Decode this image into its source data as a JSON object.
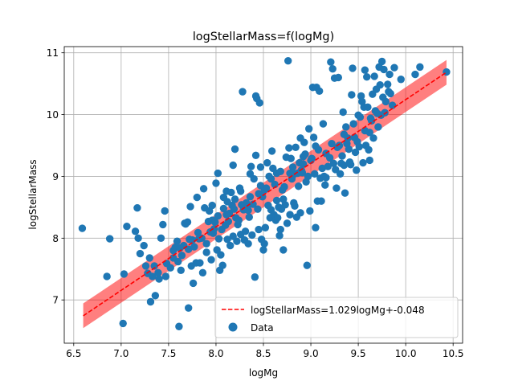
{
  "chart_data": {
    "type": "scatter",
    "title": "logStellarMass=f(logMg)",
    "xlabel": "logMg",
    "ylabel": "logStellarMass",
    "xlim": [
      6.4,
      10.6
    ],
    "ylim": [
      6.3,
      11.1
    ],
    "xticks": [
      6.5,
      7.0,
      7.5,
      8.0,
      8.5,
      9.0,
      9.5,
      10.0,
      10.5
    ],
    "xtick_labels": [
      "6.5",
      "7.0",
      "7.5",
      "8.0",
      "8.5",
      "9.0",
      "9.5",
      "10.0",
      "10.5"
    ],
    "yticks": [
      7,
      8,
      9,
      10,
      11
    ],
    "ytick_labels": [
      "7",
      "8",
      "9",
      "10",
      "11"
    ],
    "grid": true,
    "legend_position": "lower right",
    "fit": {
      "label": "logStellarMass=1.029logMg+-0.048",
      "slope": 1.029,
      "intercept": -0.048,
      "x_range": [
        6.6,
        10.43
      ],
      "band_halfwidth": 0.2,
      "line_color": "#ff0000",
      "band_color": "#ff0000"
    },
    "series": [
      {
        "name": "Data",
        "color": "#1f77b4",
        "points": [
          [
            6.59,
            8.16
          ],
          [
            6.85,
            7.38
          ],
          [
            6.88,
            7.99
          ],
          [
            7.02,
            6.62
          ],
          [
            7.03,
            7.42
          ],
          [
            7.06,
            8.19
          ],
          [
            7.15,
            8.11
          ],
          [
            7.17,
            8.49
          ],
          [
            7.18,
            8.0
          ],
          [
            7.2,
            7.75
          ],
          [
            7.24,
            7.88
          ],
          [
            7.26,
            7.55
          ],
          [
            7.28,
            7.43
          ],
          [
            7.3,
            7.68
          ],
          [
            7.31,
            6.97
          ],
          [
            7.33,
            7.38
          ],
          [
            7.35,
            7.55
          ],
          [
            7.36,
            7.07
          ],
          [
            7.39,
            7.44
          ],
          [
            7.4,
            7.34
          ],
          [
            7.42,
            8.0
          ],
          [
            7.44,
            8.22
          ],
          [
            7.46,
            8.44
          ],
          [
            7.47,
            7.38
          ],
          [
            7.48,
            7.59
          ],
          [
            7.55,
            7.68
          ],
          [
            7.55,
            7.8
          ],
          [
            7.57,
            7.85
          ],
          [
            7.59,
            7.95
          ],
          [
            7.6,
            7.62
          ],
          [
            7.61,
            6.57
          ],
          [
            7.63,
            7.48
          ],
          [
            7.64,
            7.72
          ],
          [
            7.66,
            7.88
          ],
          [
            7.67,
            8.24
          ],
          [
            7.68,
            8.23
          ],
          [
            7.7,
            8.26
          ],
          [
            7.71,
            7.82
          ],
          [
            7.71,
            6.87
          ],
          [
            7.73,
            8.51
          ],
          [
            7.74,
            7.55
          ],
          [
            7.75,
            7.97
          ],
          [
            7.76,
            7.27
          ],
          [
            7.77,
            7.86
          ],
          [
            7.79,
            7.6
          ],
          [
            7.8,
            8.66
          ],
          [
            7.81,
            8.09
          ],
          [
            7.82,
            7.99
          ],
          [
            7.83,
            7.6
          ],
          [
            7.85,
            8.0
          ],
          [
            7.86,
            7.44
          ],
          [
            7.87,
            8.8
          ],
          [
            7.88,
            8.49
          ],
          [
            7.9,
            7.91
          ],
          [
            7.9,
            7.77
          ],
          [
            7.92,
            8.27
          ],
          [
            7.93,
            8.44
          ],
          [
            7.94,
            8.1
          ],
          [
            7.95,
            7.65
          ],
          [
            7.96,
            8.29
          ],
          [
            7.97,
            8.08
          ],
          [
            7.98,
            8.15
          ],
          [
            7.99,
            8.26
          ],
          [
            8.0,
            8.89
          ],
          [
            8.01,
            7.81
          ],
          [
            8.02,
            9.05
          ],
          [
            8.03,
            7.99
          ],
          [
            8.04,
            7.48
          ],
          [
            8.05,
            7.73
          ],
          [
            8.06,
            8.14
          ],
          [
            8.07,
            7.56
          ],
          [
            8.08,
            8.48
          ],
          [
            8.08,
            8.66
          ],
          [
            8.1,
            8.21
          ],
          [
            8.11,
            8.76
          ],
          [
            8.12,
            7.98
          ],
          [
            8.12,
            8.59
          ],
          [
            8.13,
            8.27
          ],
          [
            8.14,
            8.4
          ],
          [
            8.15,
            7.88
          ],
          [
            8.16,
            8.74
          ],
          [
            8.17,
            8.53
          ],
          [
            8.18,
            9.18
          ],
          [
            8.19,
            8.47
          ],
          [
            8.2,
            8.63
          ],
          [
            8.2,
            9.44
          ],
          [
            8.21,
            8.33
          ],
          [
            8.22,
            7.95
          ],
          [
            8.23,
            8.22
          ],
          [
            8.24,
            8.29
          ],
          [
            8.25,
            8.81
          ],
          [
            8.26,
            8.06
          ],
          [
            8.27,
            8.54
          ],
          [
            8.28,
            10.37
          ],
          [
            8.29,
            8.46
          ],
          [
            8.3,
            7.97
          ],
          [
            8.31,
            8.11
          ],
          [
            8.32,
            8.57
          ],
          [
            8.33,
            8.5
          ],
          [
            8.34,
            8.45
          ],
          [
            8.35,
            8.34
          ],
          [
            8.36,
            8.67
          ],
          [
            8.37,
            9.16
          ],
          [
            8.38,
            8.05
          ],
          [
            8.39,
            8.55
          ],
          [
            8.4,
            8.96
          ],
          [
            8.41,
            7.37
          ],
          [
            8.42,
            9.34
          ],
          [
            8.42,
            10.3
          ],
          [
            8.43,
            10.26
          ],
          [
            8.44,
            8.47
          ],
          [
            8.45,
            8.72
          ],
          [
            8.46,
            10.19
          ],
          [
            8.47,
            9.15
          ],
          [
            8.48,
            7.98
          ],
          [
            8.49,
            8.67
          ],
          [
            8.5,
            7.81
          ],
          [
            8.51,
            7.91
          ],
          [
            8.51,
            8.78
          ],
          [
            8.52,
            8.17
          ],
          [
            8.53,
            8.81
          ],
          [
            8.54,
            9.22
          ],
          [
            8.55,
            8.53
          ],
          [
            8.56,
            9.0
          ],
          [
            8.57,
            8.33
          ],
          [
            8.58,
            8.46
          ],
          [
            8.59,
            9.41
          ],
          [
            8.6,
            9.13
          ],
          [
            8.61,
            8.38
          ],
          [
            8.62,
            8.87
          ],
          [
            8.63,
            8.29
          ],
          [
            8.64,
            9.05
          ],
          [
            8.65,
            8.33
          ],
          [
            8.66,
            8.5
          ],
          [
            8.67,
            8.04
          ],
          [
            8.68,
            9.08
          ],
          [
            8.68,
            8.14
          ],
          [
            8.69,
            8.47
          ],
          [
            8.7,
            8.78
          ],
          [
            8.71,
            7.81
          ],
          [
            8.72,
            8.83
          ],
          [
            8.73,
            8.54
          ],
          [
            8.74,
            9.31
          ],
          [
            8.75,
            8.24
          ],
          [
            8.76,
            10.87
          ],
          [
            8.77,
            9.46
          ],
          [
            8.78,
            8.38
          ],
          [
            8.79,
            9.29
          ],
          [
            8.8,
            8.96
          ],
          [
            8.81,
            9.15
          ],
          [
            8.82,
            8.57
          ],
          [
            8.83,
            9.04
          ],
          [
            8.84,
            9.47
          ],
          [
            8.85,
            8.34
          ],
          [
            8.86,
            9.05
          ],
          [
            8.87,
            8.84
          ],
          [
            8.88,
            9.22
          ],
          [
            8.89,
            8.41
          ],
          [
            8.9,
            9.1
          ],
          [
            8.91,
            9.06
          ],
          [
            8.92,
            9.32
          ],
          [
            8.93,
            9.55
          ],
          [
            8.94,
            9.36
          ],
          [
            8.95,
            8.91
          ],
          [
            8.96,
            7.56
          ],
          [
            8.97,
            9.0
          ],
          [
            8.98,
            9.77
          ],
          [
            8.99,
            8.44
          ],
          [
            9.0,
            9.26
          ],
          [
            9.01,
            9.29
          ],
          [
            9.02,
            10.44
          ],
          [
            9.03,
            9.63
          ],
          [
            9.04,
            9.04
          ],
          [
            9.05,
            9.49
          ],
          [
            9.05,
            8.17
          ],
          [
            9.06,
            10.44
          ],
          [
            9.07,
            8.6
          ],
          [
            9.08,
            9.43
          ],
          [
            9.09,
            10.38
          ],
          [
            9.1,
            8.97
          ],
          [
            9.11,
            8.6
          ],
          [
            9.12,
            9.13
          ],
          [
            9.13,
            9.85
          ],
          [
            9.14,
            9.0
          ],
          [
            9.15,
            8.86
          ],
          [
            9.16,
            9.37
          ],
          [
            9.18,
            9.16
          ],
          [
            9.2,
            9.3
          ],
          [
            9.21,
            10.85
          ],
          [
            9.22,
            9.53
          ],
          [
            9.23,
            10.74
          ],
          [
            9.24,
            9.21
          ],
          [
            9.25,
            10.59
          ],
          [
            9.26,
            9.11
          ],
          [
            9.27,
            8.81
          ],
          [
            9.28,
            9.47
          ],
          [
            9.29,
            10.6
          ],
          [
            9.3,
            9.5
          ],
          [
            9.31,
            9.04
          ],
          [
            9.32,
            9.21
          ],
          [
            9.33,
            9.33
          ],
          [
            9.34,
            10.04
          ],
          [
            9.35,
            9.68
          ],
          [
            9.36,
            8.73
          ],
          [
            9.37,
            9.8
          ],
          [
            9.38,
            9.53
          ],
          [
            9.39,
            9.62
          ],
          [
            9.4,
            9.44
          ],
          [
            9.41,
            9.23
          ],
          [
            9.42,
            9.19
          ],
          [
            9.43,
            10.32
          ],
          [
            9.44,
            10.75
          ],
          [
            9.45,
            9.85
          ],
          [
            9.46,
            9.63
          ],
          [
            9.47,
            9.39
          ],
          [
            9.48,
            9.1
          ],
          [
            9.49,
            9.56
          ],
          [
            9.5,
            9.99
          ],
          [
            9.51,
            9.48
          ],
          [
            9.52,
            9.96
          ],
          [
            9.53,
            10.3
          ],
          [
            9.54,
            10.21
          ],
          [
            9.55,
            9.22
          ],
          [
            9.56,
            10.12
          ],
          [
            9.57,
            10.72
          ],
          [
            9.58,
            9.5
          ],
          [
            9.59,
            10.61
          ],
          [
            9.6,
            10.12
          ],
          [
            9.61,
            9.43
          ],
          [
            9.62,
            9.71
          ],
          [
            9.62,
            9.26
          ],
          [
            9.63,
            9.94
          ],
          [
            9.64,
            9.9
          ],
          [
            9.65,
            10.33
          ],
          [
            9.66,
            9.62
          ],
          [
            9.67,
            10.62
          ],
          [
            9.68,
            10.06
          ],
          [
            9.69,
            10.41
          ],
          [
            9.7,
            10.02
          ],
          [
            9.71,
            9.8
          ],
          [
            9.72,
            10.77
          ],
          [
            9.73,
            10.48
          ],
          [
            9.74,
            9.99
          ],
          [
            9.75,
            10.86
          ],
          [
            9.76,
            10.28
          ],
          [
            9.77,
            10.73
          ],
          [
            9.78,
            10.03
          ],
          [
            9.79,
            10.21
          ],
          [
            9.81,
            10.49
          ],
          [
            9.82,
            10.37
          ],
          [
            9.83,
            10.65
          ],
          [
            9.84,
            10.34
          ],
          [
            9.86,
            10.15
          ],
          [
            9.88,
            10.76
          ],
          [
            9.95,
            10.57
          ],
          [
            10.1,
            10.65
          ],
          [
            10.15,
            10.77
          ],
          [
            10.43,
            10.69
          ],
          [
            7.96,
            8.53
          ],
          [
            8.11,
            8.38
          ],
          [
            8.26,
            8.76
          ],
          [
            8.36,
            9.04
          ],
          [
            8.47,
            8.85
          ],
          [
            8.58,
            8.96
          ],
          [
            8.71,
            8.63
          ],
          [
            8.83,
            8.52
          ],
          [
            8.92,
            9.2
          ],
          [
            9.16,
            8.98
          ],
          [
            8.18,
            8.03
          ],
          [
            8.34,
            7.91
          ],
          [
            7.62,
            7.84
          ],
          [
            7.52,
            7.52
          ],
          [
            7.72,
            7.98
          ],
          [
            8.02,
            8.36
          ],
          [
            8.45,
            8.14
          ],
          [
            8.64,
            8.61
          ],
          [
            8.78,
            9.05
          ],
          [
            9.35,
            9.18
          ],
          [
            9.57,
            9.74
          ],
          [
            8.89,
            9.62
          ]
        ]
      }
    ]
  }
}
